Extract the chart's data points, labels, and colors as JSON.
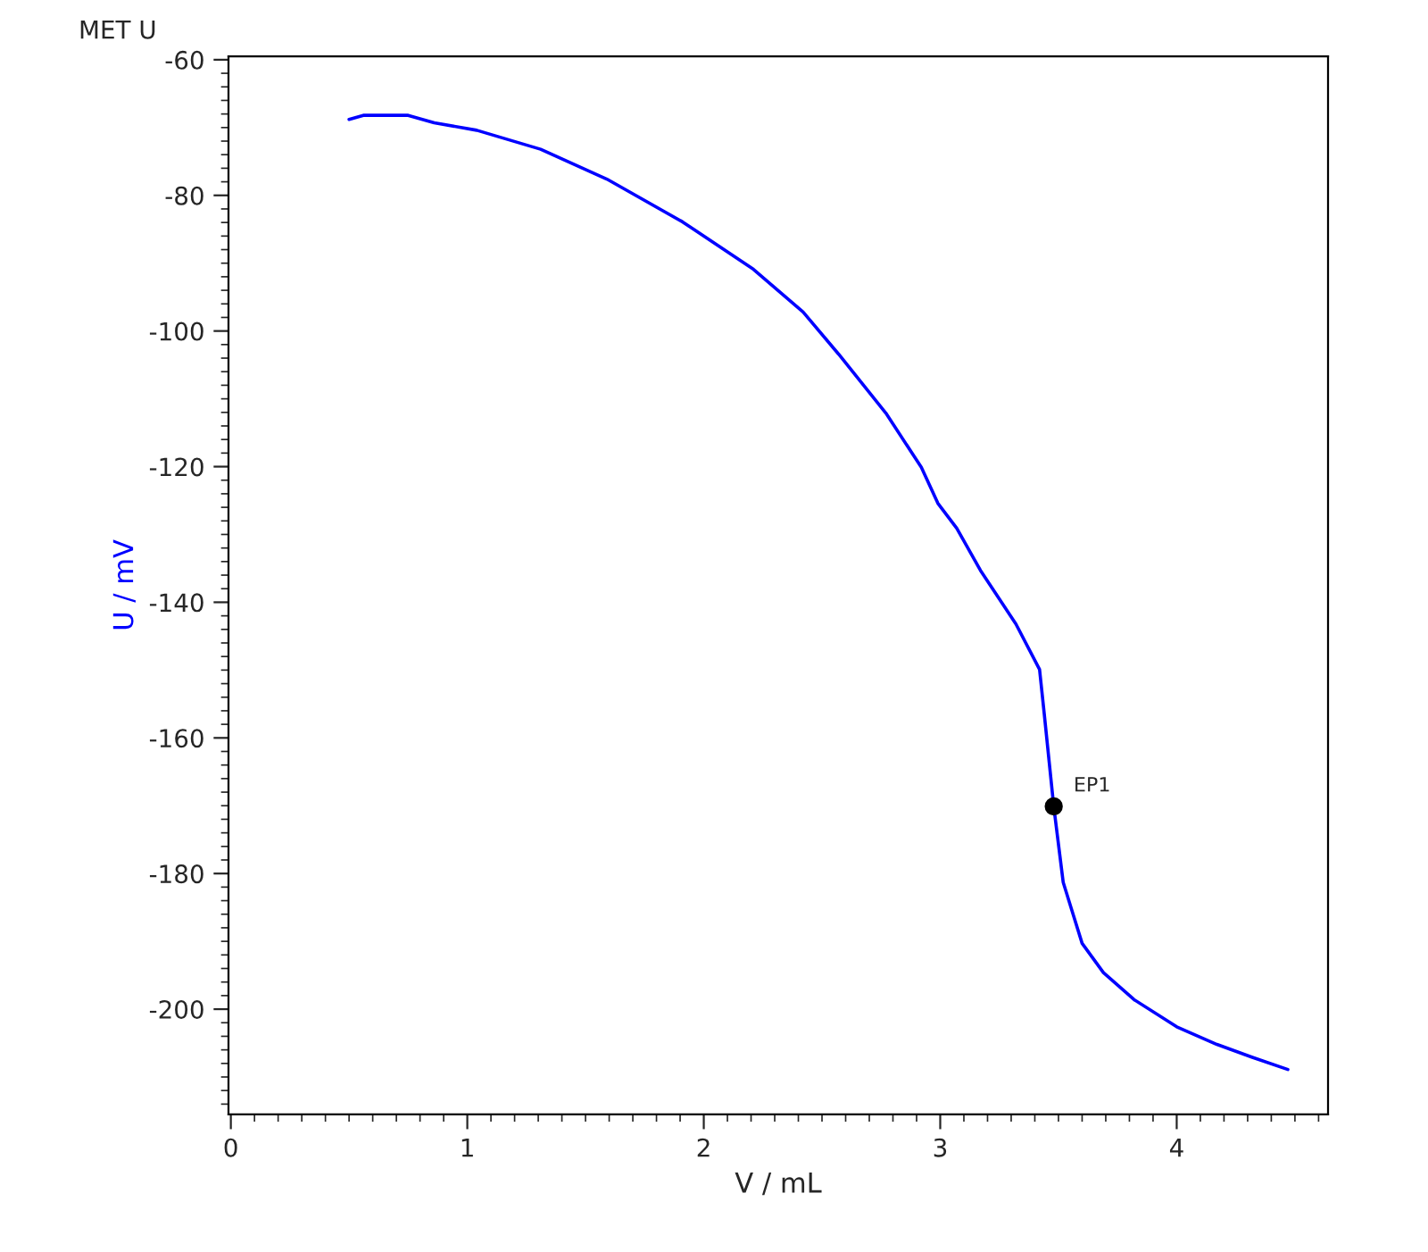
{
  "chart_data": {
    "type": "line",
    "title": "MET U",
    "xlabel": "V / mL",
    "ylabel": "U / mV",
    "xlim": [
      -0.01,
      4.64
    ],
    "ylim": [
      -215.5,
      -59.5
    ],
    "xticks": [
      0,
      1,
      2,
      3,
      4
    ],
    "yticks": [
      -60,
      -80,
      -100,
      -120,
      -140,
      -160,
      -180,
      -200
    ],
    "grid": false,
    "legend": false,
    "line_style": "solid",
    "marker": "none",
    "series": [
      {
        "color": "#0000ff",
        "x": [
          0.5,
          0.56,
          0.75,
          0.86,
          1.04,
          1.31,
          1.59,
          1.91,
          2.21,
          2.42,
          2.57,
          2.77,
          2.92,
          2.99,
          3.07,
          3.17,
          3.32,
          3.42,
          3.44,
          3.48,
          3.52,
          3.6,
          3.69,
          3.82,
          4.0,
          4.17,
          4.32,
          4.47
        ],
        "values": [
          -68.8,
          -68.2,
          -68.2,
          -69.3,
          -70.4,
          -73.2,
          -77.6,
          -83.9,
          -90.9,
          -97.2,
          -103.4,
          -112.1,
          -120.1,
          -125.4,
          -129.1,
          -135.3,
          -143.2,
          -149.9,
          -156.5,
          -170.1,
          -181.3,
          -190.3,
          -194.6,
          -198.6,
          -202.6,
          -205.2,
          -207.1,
          -208.9
        ]
      },
      {
        "type": "scatter",
        "color": "#000000",
        "marker": "circle",
        "x": [
          3.48
        ],
        "values": [
          -170.1
        ]
      }
    ],
    "annotations": [
      {
        "text": "EP1",
        "x": 3.48,
        "y": -170.1
      }
    ]
  }
}
